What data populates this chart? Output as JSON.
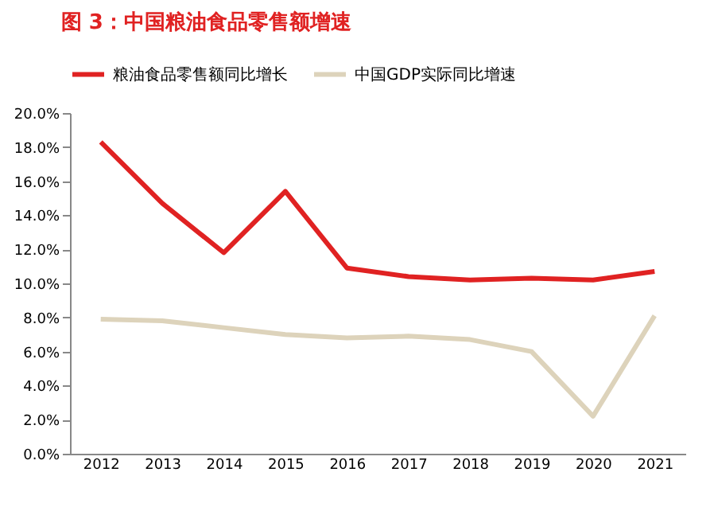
{
  "chart_data": {
    "type": "line",
    "title": "图 3：中国粮油食品零售额增速",
    "categories": [
      "2012",
      "2013",
      "2014",
      "2015",
      "2016",
      "2017",
      "2018",
      "2019",
      "2020",
      "2021"
    ],
    "series": [
      {
        "name": "粮油食品零售额同比增长",
        "color": "#e02222",
        "values": [
          18.3,
          14.7,
          11.8,
          15.4,
          10.9,
          10.4,
          10.2,
          10.3,
          10.2,
          10.7
        ]
      },
      {
        "name": "中国GDP实际同比增速",
        "color": "#ddd3bb",
        "values": [
          7.9,
          7.8,
          7.4,
          7.0,
          6.8,
          6.9,
          6.7,
          6.0,
          2.2,
          8.1
        ]
      }
    ],
    "ylim": [
      0,
      20
    ],
    "yticks": [
      {
        "value": 0,
        "label": "0.0%"
      },
      {
        "value": 2,
        "label": "2.0%"
      },
      {
        "value": 4,
        "label": "4.0%"
      },
      {
        "value": 6,
        "label": "6.0%"
      },
      {
        "value": 8,
        "label": "8.0%"
      },
      {
        "value": 10,
        "label": "10.0%"
      },
      {
        "value": 12,
        "label": "12.0%"
      },
      {
        "value": 14,
        "label": "14.0%"
      },
      {
        "value": 16,
        "label": "16.0%"
      },
      {
        "value": 18,
        "label": "18.0%"
      },
      {
        "value": 20,
        "label": "20.0%"
      }
    ],
    "grid": false,
    "legend": "top",
    "marker": "none",
    "line_style": "solid"
  }
}
